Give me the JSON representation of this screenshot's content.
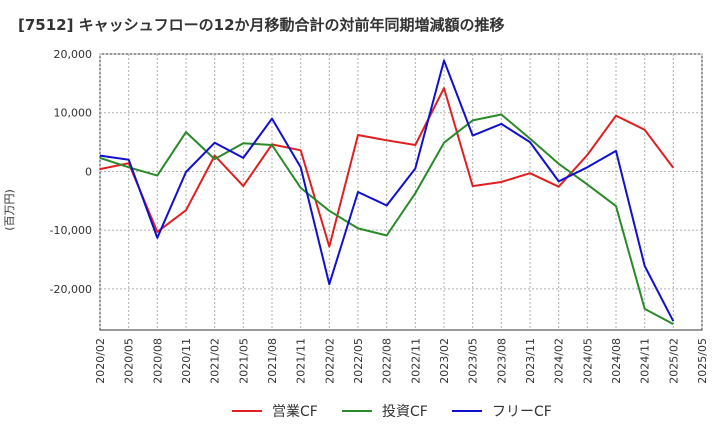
{
  "chart_data": {
    "type": "line",
    "title": "[7512]  キャッシュフローの12か月移動合計の対前年同期増減額の推移",
    "ylabel": "(百万円)",
    "xlabel": "",
    "ylim": [
      -27000,
      20000
    ],
    "yticks": [
      20000,
      10000,
      0,
      -10000,
      -20000
    ],
    "ytick_labels": [
      "20,000",
      "10,000",
      "0",
      "-10,000",
      "-20,000"
    ],
    "x": [
      "2020/02",
      "2020/05",
      "2020/08",
      "2020/11",
      "2021/02",
      "2021/05",
      "2021/08",
      "2021/11",
      "2022/02",
      "2022/05",
      "2022/08",
      "2022/11",
      "2023/02",
      "2023/05",
      "2023/08",
      "2023/11",
      "2024/02",
      "2024/05",
      "2024/08",
      "2024/11",
      "2025/02",
      "2025/05"
    ],
    "grid": true,
    "legend_position": "bottom",
    "series": [
      {
        "name": "営業CF",
        "color": "#e02020",
        "values": [
          400,
          1400,
          -10300,
          -6600,
          2700,
          -2500,
          4600,
          3600,
          -12800,
          6200,
          5300,
          4500,
          14200,
          -2500,
          -1800,
          -300,
          -2600,
          2800,
          9500,
          7100,
          600,
          null
        ]
      },
      {
        "name": "投資CF",
        "color": "#2a8a2a",
        "values": [
          2300,
          700,
          -700,
          6700,
          2100,
          4800,
          4500,
          -2800,
          -6700,
          -9700,
          -10900,
          -3700,
          4900,
          8700,
          9700,
          5600,
          1300,
          -2200,
          -5900,
          -23400,
          -26000,
          null
        ]
      },
      {
        "name": "フリーCF",
        "color": "#1010d0",
        "values": [
          2700,
          2000,
          -11300,
          -100,
          4900,
          2300,
          9000,
          700,
          -19200,
          -3500,
          -5800,
          500,
          18900,
          6100,
          8100,
          5000,
          -1700,
          700,
          3500,
          -16100,
          -25500,
          null
        ]
      }
    ]
  }
}
